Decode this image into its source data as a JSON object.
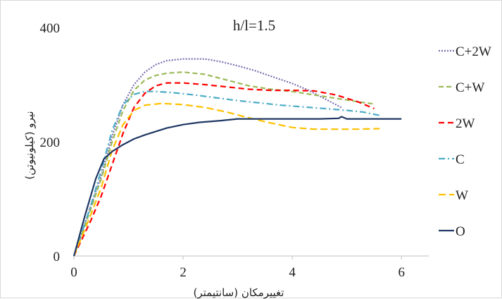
{
  "chart_data": {
    "type": "line",
    "title": "h/l=1.5",
    "xlabel": "تغییرمکان (سانتیمتر)",
    "ylabel": "نیرو (کیلونیوتن)",
    "xlim": [
      0,
      6.5
    ],
    "ylim": [
      0,
      400
    ],
    "xticks": [
      0,
      2,
      4,
      6
    ],
    "yticks": [
      0,
      200,
      400
    ],
    "xtick_labels": [
      "0",
      "2",
      "4",
      "6"
    ],
    "ytick_labels": [
      "0",
      "200",
      "400"
    ],
    "grid": false,
    "legend_position": "right",
    "series": [
      {
        "name": "C+2W",
        "color": "#7b6fb0",
        "dash": "2,2",
        "points": [
          [
            0,
            0
          ],
          [
            0.3,
            85
          ],
          [
            0.5,
            140
          ],
          [
            0.7,
            210
          ],
          [
            0.9,
            265
          ],
          [
            1.1,
            300
          ],
          [
            1.3,
            322
          ],
          [
            1.5,
            335
          ],
          [
            1.7,
            342
          ],
          [
            2.0,
            345
          ],
          [
            2.4,
            345
          ],
          [
            2.7,
            340
          ],
          [
            3.0,
            333
          ],
          [
            3.3,
            325
          ],
          [
            3.6,
            315
          ],
          [
            4.0,
            302
          ],
          [
            4.3,
            290
          ],
          [
            4.6,
            275
          ],
          [
            4.9,
            260
          ]
        ]
      },
      {
        "name": "C+W",
        "color": "#9bbb59",
        "dash": "7,4",
        "points": [
          [
            0,
            0
          ],
          [
            0.3,
            80
          ],
          [
            0.5,
            135
          ],
          [
            0.7,
            200
          ],
          [
            0.9,
            255
          ],
          [
            1.1,
            290
          ],
          [
            1.3,
            308
          ],
          [
            1.5,
            316
          ],
          [
            1.7,
            320
          ],
          [
            2.0,
            322
          ],
          [
            2.4,
            318
          ],
          [
            2.8,
            308
          ],
          [
            3.2,
            298
          ],
          [
            3.6,
            292
          ],
          [
            4.0,
            288
          ],
          [
            4.4,
            282
          ],
          [
            4.8,
            276
          ],
          [
            5.2,
            270
          ],
          [
            5.5,
            266
          ]
        ]
      },
      {
        "name": "2W",
        "color": "#ff0000",
        "dash": "8,5",
        "points": [
          [
            0,
            0
          ],
          [
            0.3,
            60
          ],
          [
            0.5,
            105
          ],
          [
            0.7,
            160
          ],
          [
            0.9,
            215
          ],
          [
            1.1,
            260
          ],
          [
            1.3,
            285
          ],
          [
            1.5,
            298
          ],
          [
            1.7,
            303
          ],
          [
            2.0,
            303
          ],
          [
            2.4,
            300
          ],
          [
            2.8,
            296
          ],
          [
            3.2,
            292
          ],
          [
            3.6,
            290
          ],
          [
            4.0,
            290
          ],
          [
            4.4,
            289
          ],
          [
            4.8,
            282
          ],
          [
            5.2,
            270
          ],
          [
            5.5,
            258
          ]
        ]
      },
      {
        "name": "C",
        "color": "#4bacc6",
        "dash": "9,4,2,4",
        "points": [
          [
            0,
            0
          ],
          [
            0.3,
            85
          ],
          [
            0.5,
            150
          ],
          [
            0.7,
            220
          ],
          [
            0.9,
            265
          ],
          [
            1.1,
            283
          ],
          [
            1.3,
            288
          ],
          [
            1.5,
            288
          ],
          [
            1.8,
            286
          ],
          [
            2.2,
            282
          ],
          [
            2.6,
            277
          ],
          [
            3.0,
            272
          ],
          [
            3.4,
            268
          ],
          [
            3.8,
            264
          ],
          [
            4.2,
            261
          ],
          [
            4.6,
            258
          ],
          [
            5.0,
            255
          ],
          [
            5.3,
            252
          ],
          [
            5.6,
            246
          ]
        ]
      },
      {
        "name": "W",
        "color": "#ffc000",
        "dash": "10,5",
        "points": [
          [
            0,
            0
          ],
          [
            0.3,
            70
          ],
          [
            0.5,
            120
          ],
          [
            0.7,
            185
          ],
          [
            0.9,
            230
          ],
          [
            1.1,
            255
          ],
          [
            1.3,
            264
          ],
          [
            1.6,
            267
          ],
          [
            2.0,
            265
          ],
          [
            2.4,
            260
          ],
          [
            2.8,
            252
          ],
          [
            3.2,
            242
          ],
          [
            3.6,
            233
          ],
          [
            4.0,
            225
          ],
          [
            4.4,
            222
          ],
          [
            4.8,
            222
          ],
          [
            5.2,
            222
          ],
          [
            5.6,
            223
          ]
        ]
      },
      {
        "name": "O",
        "color": "#1f3864",
        "dash": "",
        "points": [
          [
            0,
            0
          ],
          [
            0.2,
            70
          ],
          [
            0.4,
            135
          ],
          [
            0.55,
            170
          ],
          [
            0.7,
            183
          ],
          [
            0.9,
            195
          ],
          [
            1.1,
            205
          ],
          [
            1.3,
            212
          ],
          [
            1.5,
            218
          ],
          [
            1.7,
            224
          ],
          [
            2.0,
            230
          ],
          [
            2.3,
            234
          ],
          [
            2.7,
            237
          ],
          [
            3.0,
            240
          ],
          [
            3.5,
            240
          ],
          [
            4.0,
            240
          ],
          [
            4.5,
            240
          ],
          [
            4.85,
            241
          ],
          [
            4.9,
            244
          ],
          [
            5.0,
            240
          ],
          [
            5.5,
            240
          ],
          [
            6.0,
            240
          ]
        ]
      }
    ]
  }
}
